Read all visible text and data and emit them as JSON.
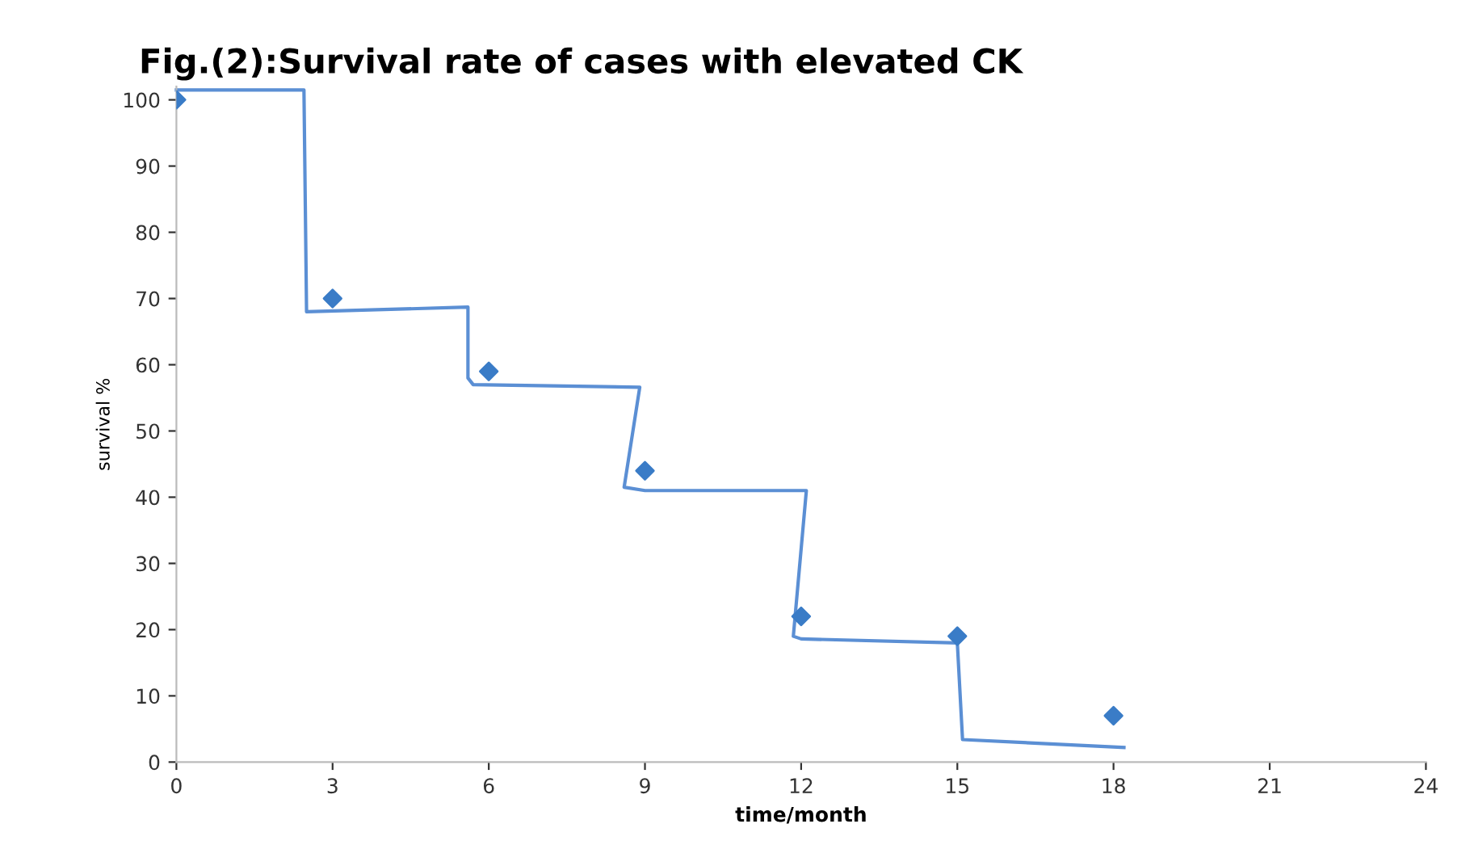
{
  "chart_data": {
    "type": "scatter",
    "title": "Fig.(2):Survival rate of cases with elevated CK",
    "xlabel": "time/month",
    "ylabel": "survival %",
    "x": [
      0,
      3,
      6,
      9,
      12,
      15,
      18
    ],
    "series": [
      {
        "color": "#3a7cc7",
        "marker": "diamond",
        "values": [
          100,
          70,
          59,
          44,
          22,
          19,
          7
        ]
      },
      {
        "type": "line",
        "color": "#5b8fd4",
        "marker": "none",
        "x": [
          0,
          2.45,
          2.5,
          5.6,
          5.6,
          5.7,
          8.9,
          8.6,
          9,
          12.1,
          11.85,
          12,
          15,
          15.1,
          18.2
        ],
        "values": [
          101.5,
          101.5,
          68,
          68.7,
          58,
          57,
          56.6,
          41.5,
          41,
          41,
          19,
          18.6,
          18,
          3.4,
          2.2
        ]
      }
    ],
    "xlim": [
      0,
      24
    ],
    "xticks": [
      0,
      3,
      6,
      9,
      12,
      15,
      18,
      21,
      24
    ],
    "ylim": [
      0,
      102
    ],
    "yticks": [
      0,
      10,
      20,
      30,
      40,
      50,
      60,
      70,
      80,
      90,
      100
    ],
    "grid": false,
    "legend": false
  }
}
